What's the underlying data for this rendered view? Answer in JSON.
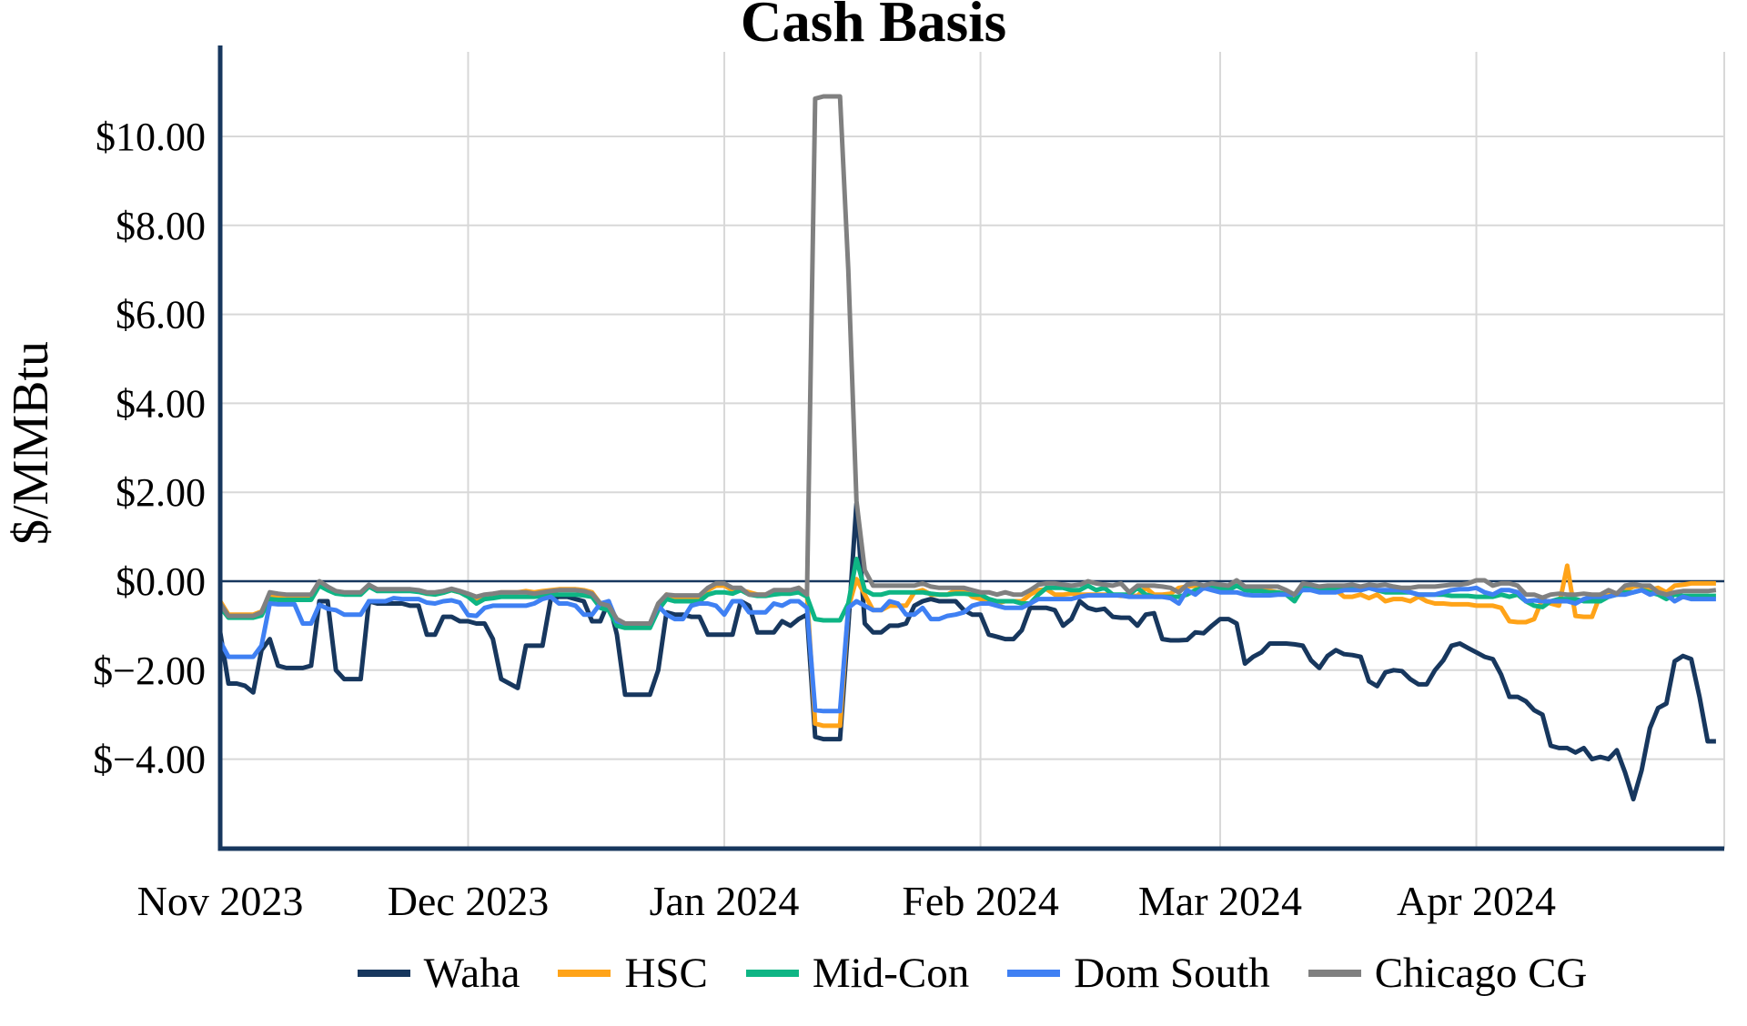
{
  "chart": {
    "title": "Cash Basis",
    "ylabel": "$/MMBtu"
  },
  "chart_data": {
    "type": "line",
    "title": "Cash Basis",
    "xlabel": "",
    "ylabel": "$/MMBtu",
    "x_start": "2023-11-01",
    "x_end": "2024-04-30",
    "frequency": "daily",
    "total_days": 182,
    "ylim": [
      -6,
      11.9
    ],
    "grid": true,
    "legend_position": "bottom",
    "x_tick_labels": [
      "Nov 2023",
      "Dec 2023",
      "Jan 2024",
      "Feb 2024",
      "Mar 2024",
      "Apr 2024"
    ],
    "x_tick_day_offsets": [
      0,
      30,
      61,
      92,
      121,
      152
    ],
    "gridline_day_offsets": [
      30,
      61,
      92,
      121,
      152,
      182
    ],
    "y_tick_labels": [
      "$10.00",
      "$8.00",
      "$6.00",
      "$4.00",
      "$2.00",
      "$0.00",
      "$−2.00",
      "$−4.00"
    ],
    "y_tick_values": [
      10,
      8,
      6,
      4,
      2,
      0,
      -2,
      -4
    ],
    "y_gridline_values": [
      10,
      8,
      6,
      4,
      2,
      -2,
      -4
    ],
    "zero_line_value": 0,
    "colors": {
      "axis": "#17375e",
      "zero_line": "#17375e",
      "gridline": "#d8d8d8",
      "text": "#000000"
    },
    "series": [
      {
        "name": "Waha",
        "color": "#17375e",
        "values": [
          -1.15,
          -2.3,
          -2.3,
          -2.35,
          -2.5,
          -1.55,
          -1.3,
          -1.9,
          -1.95,
          -1.95,
          -1.95,
          -1.9,
          -0.45,
          -0.45,
          -2.0,
          -2.2,
          -2.2,
          -2.2,
          -0.45,
          -0.5,
          -0.5,
          -0.5,
          -0.5,
          -0.55,
          -0.55,
          -1.2,
          -1.2,
          -0.8,
          -0.8,
          -0.9,
          -0.9,
          -0.95,
          -0.95,
          -1.3,
          -2.2,
          -2.3,
          -2.4,
          -1.45,
          -1.45,
          -1.45,
          -0.4,
          -0.35,
          -0.35,
          -0.4,
          -0.45,
          -0.9,
          -0.9,
          -0.45,
          -1.2,
          -2.55,
          -2.55,
          -2.55,
          -2.55,
          -2.0,
          -0.7,
          -0.75,
          -0.75,
          -0.8,
          -0.8,
          -1.2,
          -1.2,
          -1.2,
          -1.2,
          -0.45,
          -0.55,
          -1.15,
          -1.15,
          -1.15,
          -0.9,
          -1.0,
          -0.85,
          -0.75,
          -3.5,
          -3.55,
          -3.55,
          -3.55,
          -1.0,
          1.75,
          -0.95,
          -1.15,
          -1.15,
          -1.0,
          -1.0,
          -0.95,
          -0.55,
          -0.45,
          -0.4,
          -0.45,
          -0.45,
          -0.45,
          -0.65,
          -0.75,
          -0.75,
          -1.2,
          -1.25,
          -1.3,
          -1.3,
          -1.1,
          -0.6,
          -0.6,
          -0.6,
          -0.65,
          -1.0,
          -0.85,
          -0.45,
          -0.6,
          -0.65,
          -0.62,
          -0.8,
          -0.82,
          -0.82,
          -1.0,
          -0.75,
          -0.72,
          -1.3,
          -1.33,
          -1.33,
          -1.32,
          -1.15,
          -1.17,
          -1.0,
          -0.85,
          -0.85,
          -0.95,
          -1.85,
          -1.7,
          -1.6,
          -1.4,
          -1.4,
          -1.4,
          -1.42,
          -1.45,
          -1.78,
          -1.95,
          -1.68,
          -1.55,
          -1.64,
          -1.66,
          -1.7,
          -2.25,
          -2.36,
          -2.05,
          -2.0,
          -2.02,
          -2.2,
          -2.32,
          -2.32,
          -2.0,
          -1.78,
          -1.45,
          -1.4,
          -1.5,
          -1.6,
          -1.7,
          -1.75,
          -2.1,
          -2.6,
          -2.6,
          -2.7,
          -2.9,
          -3.0,
          -3.7,
          -3.75,
          -3.75,
          -3.85,
          -3.75,
          -4.0,
          -3.95,
          -4.0,
          -3.8,
          -4.3,
          -4.9,
          -4.25,
          -3.3,
          -2.85,
          -2.75,
          -1.8,
          -1.68,
          -1.75,
          -2.6,
          -3.6,
          -3.6
        ]
      },
      {
        "name": "HSC",
        "color": "#ffa318",
        "values": [
          -0.45,
          -0.75,
          -0.75,
          -0.75,
          -0.75,
          -0.68,
          -0.3,
          -0.33,
          -0.35,
          -0.35,
          -0.35,
          -0.35,
          -0.05,
          -0.15,
          -0.25,
          -0.28,
          -0.28,
          -0.28,
          -0.1,
          -0.18,
          -0.2,
          -0.2,
          -0.2,
          -0.2,
          -0.22,
          -0.28,
          -0.28,
          -0.25,
          -0.2,
          -0.25,
          -0.3,
          -0.45,
          -0.35,
          -0.3,
          -0.25,
          -0.25,
          -0.25,
          -0.22,
          -0.25,
          -0.22,
          -0.2,
          -0.18,
          -0.18,
          -0.18,
          -0.2,
          -0.25,
          -0.5,
          -0.55,
          -0.9,
          -1.0,
          -1.0,
          -1.0,
          -1.0,
          -0.55,
          -0.3,
          -0.35,
          -0.35,
          -0.35,
          -0.35,
          -0.2,
          -0.1,
          -0.1,
          -0.2,
          -0.2,
          -0.25,
          -0.3,
          -0.3,
          -0.28,
          -0.25,
          -0.25,
          -0.15,
          -0.3,
          -3.2,
          -3.25,
          -3.25,
          -3.25,
          -0.6,
          0.05,
          -0.3,
          -0.65,
          -0.65,
          -0.55,
          -0.55,
          -0.55,
          -0.25,
          -0.2,
          -0.3,
          -0.3,
          -0.3,
          -0.2,
          -0.2,
          -0.35,
          -0.4,
          -0.5,
          -0.5,
          -0.45,
          -0.45,
          -0.45,
          -0.3,
          -0.2,
          -0.18,
          -0.3,
          -0.3,
          -0.28,
          -0.3,
          -0.3,
          -0.3,
          -0.3,
          -0.3,
          -0.33,
          -0.33,
          -0.33,
          -0.15,
          -0.3,
          -0.3,
          -0.28,
          -0.15,
          -0.12,
          -0.1,
          -0.1,
          -0.1,
          -0.12,
          -0.15,
          -0.1,
          -0.15,
          -0.2,
          -0.2,
          -0.22,
          -0.25,
          -0.3,
          -0.4,
          -0.15,
          -0.15,
          -0.2,
          -0.2,
          -0.2,
          -0.35,
          -0.35,
          -0.3,
          -0.38,
          -0.3,
          -0.45,
          -0.4,
          -0.4,
          -0.45,
          -0.35,
          -0.45,
          -0.5,
          -0.5,
          -0.52,
          -0.52,
          -0.52,
          -0.55,
          -0.55,
          -0.55,
          -0.6,
          -0.9,
          -0.92,
          -0.92,
          -0.85,
          -0.4,
          -0.5,
          -0.55,
          0.35,
          -0.78,
          -0.8,
          -0.8,
          -0.3,
          -0.25,
          -0.3,
          -0.2,
          -0.12,
          -0.1,
          -0.2,
          -0.15,
          -0.25,
          -0.1,
          -0.08,
          -0.05,
          -0.05,
          -0.05,
          -0.05
        ]
      },
      {
        "name": "Mid-Con",
        "color": "#0eb584",
        "values": [
          -0.58,
          -0.82,
          -0.82,
          -0.82,
          -0.82,
          -0.77,
          -0.4,
          -0.42,
          -0.42,
          -0.42,
          -0.42,
          -0.42,
          -0.1,
          -0.2,
          -0.28,
          -0.3,
          -0.3,
          -0.3,
          -0.12,
          -0.22,
          -0.22,
          -0.22,
          -0.22,
          -0.22,
          -0.24,
          -0.28,
          -0.3,
          -0.26,
          -0.2,
          -0.25,
          -0.35,
          -0.5,
          -0.4,
          -0.38,
          -0.35,
          -0.35,
          -0.35,
          -0.35,
          -0.35,
          -0.33,
          -0.3,
          -0.3,
          -0.3,
          -0.3,
          -0.32,
          -0.35,
          -0.6,
          -0.65,
          -1.0,
          -1.05,
          -1.05,
          -1.05,
          -1.05,
          -0.65,
          -0.4,
          -0.45,
          -0.45,
          -0.45,
          -0.45,
          -0.3,
          -0.25,
          -0.25,
          -0.28,
          -0.2,
          -0.3,
          -0.33,
          -0.33,
          -0.3,
          -0.28,
          -0.28,
          -0.25,
          -0.35,
          -0.85,
          -0.88,
          -0.88,
          -0.88,
          -0.5,
          0.5,
          -0.2,
          -0.3,
          -0.3,
          -0.25,
          -0.25,
          -0.25,
          -0.25,
          -0.25,
          -0.28,
          -0.3,
          -0.3,
          -0.28,
          -0.28,
          -0.3,
          -0.3,
          -0.4,
          -0.45,
          -0.45,
          -0.45,
          -0.5,
          -0.5,
          -0.3,
          -0.15,
          -0.15,
          -0.15,
          -0.2,
          -0.2,
          -0.1,
          -0.2,
          -0.15,
          -0.3,
          -0.3,
          -0.3,
          -0.15,
          -0.3,
          -0.35,
          -0.35,
          -0.35,
          -0.35,
          -0.3,
          -0.2,
          -0.15,
          -0.15,
          -0.15,
          -0.2,
          -0.1,
          -0.2,
          -0.22,
          -0.22,
          -0.25,
          -0.25,
          -0.3,
          -0.45,
          -0.15,
          -0.12,
          -0.2,
          -0.18,
          -0.18,
          -0.18,
          -0.15,
          -0.2,
          -0.15,
          -0.2,
          -0.25,
          -0.25,
          -0.25,
          -0.25,
          -0.3,
          -0.3,
          -0.3,
          -0.3,
          -0.33,
          -0.33,
          -0.33,
          -0.35,
          -0.35,
          -0.35,
          -0.3,
          -0.35,
          -0.3,
          -0.45,
          -0.55,
          -0.58,
          -0.45,
          -0.4,
          -0.4,
          -0.4,
          -0.45,
          -0.45,
          -0.45,
          -0.35,
          -0.3,
          -0.25,
          -0.25,
          -0.2,
          -0.25,
          -0.3,
          -0.4,
          -0.3,
          -0.33,
          -0.33,
          -0.33,
          -0.33,
          -0.33
        ]
      },
      {
        "name": "Dom South",
        "color": "#3f80f3",
        "values": [
          -1.35,
          -1.7,
          -1.7,
          -1.7,
          -1.7,
          -1.45,
          -0.5,
          -0.52,
          -0.52,
          -0.52,
          -0.95,
          -0.95,
          -0.53,
          -0.62,
          -0.65,
          -0.75,
          -0.75,
          -0.75,
          -0.45,
          -0.45,
          -0.45,
          -0.38,
          -0.4,
          -0.4,
          -0.4,
          -0.48,
          -0.5,
          -0.45,
          -0.43,
          -0.48,
          -0.76,
          -0.78,
          -0.6,
          -0.55,
          -0.55,
          -0.55,
          -0.55,
          -0.55,
          -0.5,
          -0.4,
          -0.35,
          -0.5,
          -0.5,
          -0.55,
          -0.75,
          -0.75,
          -0.5,
          -0.45,
          -0.9,
          -0.95,
          -0.95,
          -0.95,
          -0.95,
          -0.55,
          -0.75,
          -0.85,
          -0.85,
          -0.55,
          -0.5,
          -0.5,
          -0.55,
          -0.75,
          -0.45,
          -0.45,
          -0.7,
          -0.7,
          -0.7,
          -0.5,
          -0.55,
          -0.45,
          -0.45,
          -0.6,
          -2.9,
          -2.92,
          -2.92,
          -2.92,
          -0.6,
          -0.45,
          -0.55,
          -0.65,
          -0.65,
          -0.45,
          -0.5,
          -0.75,
          -0.75,
          -0.6,
          -0.85,
          -0.85,
          -0.78,
          -0.75,
          -0.7,
          -0.55,
          -0.5,
          -0.5,
          -0.55,
          -0.6,
          -0.6,
          -0.6,
          -0.5,
          -0.4,
          -0.4,
          -0.4,
          -0.4,
          -0.4,
          -0.35,
          -0.32,
          -0.32,
          -0.32,
          -0.32,
          -0.32,
          -0.35,
          -0.35,
          -0.35,
          -0.35,
          -0.35,
          -0.38,
          -0.5,
          -0.2,
          -0.3,
          -0.15,
          -0.2,
          -0.25,
          -0.25,
          -0.25,
          -0.3,
          -0.32,
          -0.32,
          -0.32,
          -0.3,
          -0.3,
          -0.3,
          -0.2,
          -0.2,
          -0.25,
          -0.25,
          -0.25,
          -0.2,
          -0.2,
          -0.2,
          -0.15,
          -0.2,
          -0.2,
          -0.2,
          -0.2,
          -0.25,
          -0.3,
          -0.3,
          -0.3,
          -0.25,
          -0.2,
          -0.18,
          -0.18,
          -0.15,
          -0.25,
          -0.3,
          -0.2,
          -0.2,
          -0.25,
          -0.45,
          -0.43,
          -0.45,
          -0.45,
          -0.45,
          -0.45,
          -0.5,
          -0.4,
          -0.35,
          -0.35,
          -0.35,
          -0.3,
          -0.3,
          -0.25,
          -0.2,
          -0.3,
          -0.25,
          -0.3,
          -0.45,
          -0.35,
          -0.4,
          -0.4,
          -0.4,
          -0.4
        ]
      },
      {
        "name": "Chicago CG",
        "color": "#808080",
        "values": [
          -0.5,
          -0.78,
          -0.78,
          -0.78,
          -0.78,
          -0.7,
          -0.25,
          -0.28,
          -0.3,
          -0.3,
          -0.3,
          -0.3,
          0.0,
          -0.12,
          -0.22,
          -0.25,
          -0.25,
          -0.25,
          -0.08,
          -0.18,
          -0.18,
          -0.18,
          -0.18,
          -0.18,
          -0.2,
          -0.25,
          -0.25,
          -0.22,
          -0.17,
          -0.22,
          -0.28,
          -0.35,
          -0.3,
          -0.28,
          -0.25,
          -0.25,
          -0.25,
          -0.25,
          -0.28,
          -0.25,
          -0.22,
          -0.2,
          -0.2,
          -0.2,
          -0.22,
          -0.28,
          -0.5,
          -0.55,
          -0.85,
          -0.95,
          -0.95,
          -0.95,
          -0.95,
          -0.5,
          -0.3,
          -0.32,
          -0.32,
          -0.32,
          -0.32,
          -0.15,
          -0.05,
          -0.05,
          -0.15,
          -0.15,
          -0.3,
          -0.3,
          -0.3,
          -0.2,
          -0.2,
          -0.2,
          -0.15,
          -0.3,
          10.85,
          10.9,
          10.9,
          10.9,
          7.0,
          1.8,
          0.25,
          -0.1,
          -0.1,
          -0.1,
          -0.1,
          -0.1,
          -0.1,
          -0.05,
          -0.12,
          -0.15,
          -0.15,
          -0.15,
          -0.15,
          -0.2,
          -0.25,
          -0.25,
          -0.3,
          -0.25,
          -0.3,
          -0.3,
          -0.2,
          -0.08,
          -0.05,
          -0.05,
          -0.08,
          -0.1,
          -0.08,
          0.0,
          -0.05,
          -0.08,
          -0.1,
          -0.05,
          -0.25,
          -0.1,
          -0.1,
          -0.1,
          -0.12,
          -0.15,
          -0.25,
          -0.08,
          -0.05,
          -0.1,
          -0.05,
          -0.08,
          -0.1,
          0.02,
          -0.12,
          -0.12,
          -0.12,
          -0.12,
          -0.12,
          -0.2,
          -0.3,
          -0.05,
          -0.08,
          -0.12,
          -0.1,
          -0.1,
          -0.1,
          -0.08,
          -0.12,
          -0.08,
          -0.1,
          -0.08,
          -0.12,
          -0.15,
          -0.15,
          -0.12,
          -0.12,
          -0.12,
          -0.1,
          -0.08,
          -0.08,
          -0.05,
          0.02,
          0.02,
          -0.1,
          -0.05,
          -0.05,
          -0.1,
          -0.3,
          -0.3,
          -0.37,
          -0.3,
          -0.28,
          -0.3,
          -0.3,
          -0.28,
          -0.3,
          -0.3,
          -0.2,
          -0.28,
          -0.1,
          -0.07,
          -0.1,
          -0.1,
          -0.25,
          -0.3,
          -0.25,
          -0.22,
          -0.22,
          -0.22,
          -0.22,
          -0.2
        ]
      }
    ]
  }
}
